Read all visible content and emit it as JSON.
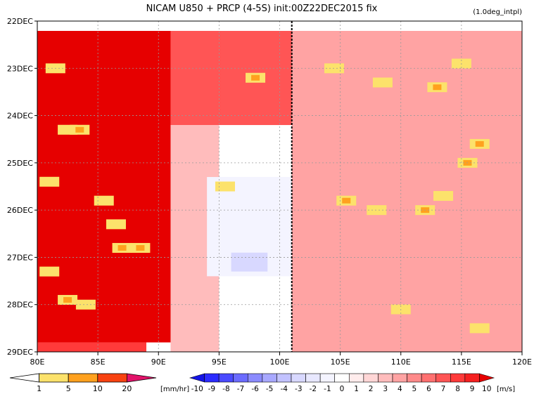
{
  "title": "NICAM   U850 + PRCP (4-5S) init:00Z22DEC2015 fix",
  "subtitle": "(1.0deg_intpl)",
  "chart_data": {
    "type": "heatmap",
    "title": "NICAM   U850 + PRCP (4-5S) init:00Z22DEC2015 fix",
    "subtitle": "(1.0deg_intpl)",
    "x_ticks": [
      "80E",
      "85E",
      "90E",
      "95E",
      "100E",
      "105E",
      "110E",
      "115E",
      "120E"
    ],
    "y_ticks": [
      "22DEC",
      "23DEC",
      "24DEC",
      "25DEC",
      "26DEC",
      "27DEC",
      "28DEC",
      "29DEC"
    ],
    "xlim": [
      80,
      120
    ],
    "ylim": [
      "22DEC",
      "29DEC"
    ],
    "y_reversed": true,
    "grid": true,
    "reference_line_lon": 101,
    "u850_colorbar": {
      "label": "[m/s]",
      "levels": [
        "-10",
        "-9",
        "-8",
        "-7",
        "-6",
        "-5",
        "-4",
        "-3",
        "-2",
        "-1",
        "0",
        "1",
        "2",
        "3",
        "4",
        "5",
        "6",
        "7",
        "8",
        "9",
        "10"
      ],
      "colors": [
        "#1414e6",
        "#2b2bff",
        "#4a4aff",
        "#6b6bff",
        "#8b8bff",
        "#a8a8ff",
        "#c2c2ff",
        "#d8d8ff",
        "#e8e8ff",
        "#f4f4ff",
        "#ffffff",
        "#ffecec",
        "#ffd6d6",
        "#ffbcbc",
        "#ffa3a3",
        "#ff8a8a",
        "#ff7070",
        "#ff5555",
        "#ff3a3a",
        "#f52020",
        "#e60000"
      ]
    },
    "prcp_colorbar": {
      "label": "[mm/hr]",
      "levels": [
        "1",
        "5",
        "10",
        "20"
      ],
      "colors": [
        "#ffffff",
        "#fce26b",
        "#ffa11e",
        "#f84210",
        "#e2136a"
      ]
    },
    "u850_regions": [
      {
        "lon": [
          80,
          91
        ],
        "days": [
          0.0,
          6.8
        ],
        "u": 10
      },
      {
        "lon": [
          80,
          89
        ],
        "days": [
          6.8,
          7.0
        ],
        "u": 8
      },
      {
        "lon": [
          91,
          101
        ],
        "days": [
          0.0,
          2.2
        ],
        "u": 7
      },
      {
        "lon": [
          101,
          120
        ],
        "days": [
          0.0,
          7.0
        ],
        "u": 4
      },
      {
        "lon": [
          91,
          95
        ],
        "days": [
          2.2,
          7.0
        ],
        "u": 3
      },
      {
        "lon": [
          94,
          101
        ],
        "days": [
          3.3,
          5.4
        ],
        "u": -1
      },
      {
        "lon": [
          96,
          99
        ],
        "days": [
          4.9,
          5.3
        ],
        "u": -3
      }
    ],
    "prcp_points": [
      {
        "lon": 81.5,
        "day": 1.0,
        "mm_hr": 5
      },
      {
        "lon": 82.5,
        "day": 2.3,
        "mm_hr": 5
      },
      {
        "lon": 83.5,
        "day": 2.3,
        "mm_hr": 10
      },
      {
        "lon": 85.5,
        "day": 3.8,
        "mm_hr": 5
      },
      {
        "lon": 81.0,
        "day": 3.4,
        "mm_hr": 5
      },
      {
        "lon": 86.5,
        "day": 4.3,
        "mm_hr": 5
      },
      {
        "lon": 87.0,
        "day": 4.8,
        "mm_hr": 10
      },
      {
        "lon": 88.5,
        "day": 4.8,
        "mm_hr": 10
      },
      {
        "lon": 81.0,
        "day": 5.3,
        "mm_hr": 5
      },
      {
        "lon": 82.5,
        "day": 5.9,
        "mm_hr": 10
      },
      {
        "lon": 84.0,
        "day": 6.0,
        "mm_hr": 5
      },
      {
        "lon": 98.0,
        "day": 1.2,
        "mm_hr": 10
      },
      {
        "lon": 104.5,
        "day": 1.0,
        "mm_hr": 5
      },
      {
        "lon": 108.5,
        "day": 1.3,
        "mm_hr": 5
      },
      {
        "lon": 113.0,
        "day": 1.4,
        "mm_hr": 10
      },
      {
        "lon": 115.0,
        "day": 0.9,
        "mm_hr": 5
      },
      {
        "lon": 116.5,
        "day": 2.6,
        "mm_hr": 10
      },
      {
        "lon": 115.5,
        "day": 3.0,
        "mm_hr": 10
      },
      {
        "lon": 113.5,
        "day": 3.7,
        "mm_hr": 5
      },
      {
        "lon": 112.0,
        "day": 4.0,
        "mm_hr": 10
      },
      {
        "lon": 105.5,
        "day": 3.8,
        "mm_hr": 10
      },
      {
        "lon": 108.0,
        "day": 4.0,
        "mm_hr": 5
      },
      {
        "lon": 95.5,
        "day": 3.5,
        "mm_hr": 5
      },
      {
        "lon": 110.0,
        "day": 6.1,
        "mm_hr": 5
      },
      {
        "lon": 116.5,
        "day": 6.5,
        "mm_hr": 5
      }
    ]
  }
}
